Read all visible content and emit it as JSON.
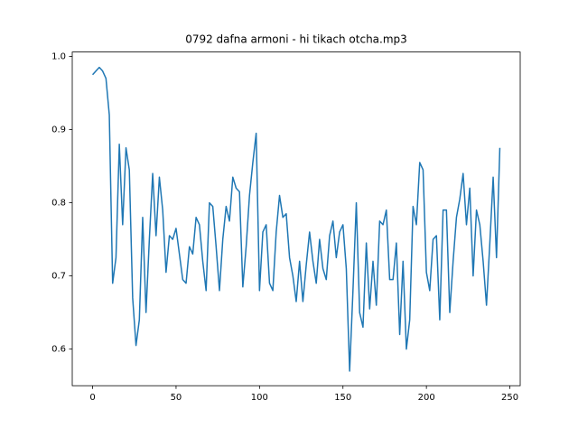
{
  "chart_data": {
    "type": "line",
    "title": "0792 dafna armoni - hi tikach otcha.mp3",
    "x": [
      0,
      2,
      4,
      6,
      8,
      10,
      12,
      14,
      16,
      18,
      20,
      22,
      24,
      26,
      28,
      30,
      32,
      34,
      36,
      38,
      40,
      42,
      44,
      46,
      48,
      50,
      52,
      54,
      56,
      58,
      60,
      62,
      64,
      66,
      68,
      70,
      72,
      74,
      76,
      78,
      80,
      82,
      84,
      86,
      88,
      90,
      92,
      94,
      96,
      98,
      100,
      102,
      104,
      106,
      108,
      110,
      112,
      114,
      116,
      118,
      120,
      122,
      124,
      126,
      128,
      130,
      132,
      134,
      136,
      138,
      140,
      142,
      144,
      146,
      148,
      150,
      152,
      154,
      156,
      158,
      160,
      162,
      164,
      166,
      168,
      170,
      172,
      174,
      176,
      178,
      180,
      182,
      184,
      186,
      188,
      190,
      192,
      194,
      196,
      198,
      200,
      202,
      204,
      206,
      208,
      210,
      212,
      214,
      216,
      218,
      220,
      222,
      224,
      226,
      228,
      230,
      232,
      234,
      236,
      238,
      240,
      242,
      244
    ],
    "series": [
      {
        "color": "#1f77b4",
        "values": [
          0.975,
          0.98,
          0.985,
          0.98,
          0.97,
          0.92,
          0.69,
          0.725,
          0.88,
          0.77,
          0.875,
          0.845,
          0.67,
          0.605,
          0.64,
          0.78,
          0.65,
          0.75,
          0.84,
          0.755,
          0.835,
          0.79,
          0.705,
          0.755,
          0.75,
          0.765,
          0.73,
          0.695,
          0.69,
          0.74,
          0.73,
          0.78,
          0.77,
          0.72,
          0.68,
          0.8,
          0.795,
          0.74,
          0.68,
          0.75,
          0.795,
          0.775,
          0.835,
          0.82,
          0.815,
          0.685,
          0.74,
          0.81,
          0.855,
          0.895,
          0.68,
          0.76,
          0.77,
          0.69,
          0.68,
          0.76,
          0.81,
          0.78,
          0.785,
          0.725,
          0.7,
          0.665,
          0.72,
          0.665,
          0.715,
          0.76,
          0.72,
          0.69,
          0.75,
          0.71,
          0.695,
          0.755,
          0.775,
          0.725,
          0.76,
          0.77,
          0.71,
          0.57,
          0.68,
          0.8,
          0.65,
          0.63,
          0.745,
          0.655,
          0.72,
          0.66,
          0.775,
          0.77,
          0.79,
          0.695,
          0.695,
          0.745,
          0.62,
          0.72,
          0.6,
          0.64,
          0.795,
          0.77,
          0.855,
          0.845,
          0.705,
          0.68,
          0.75,
          0.755,
          0.64,
          0.79,
          0.79,
          0.65,
          0.72,
          0.78,
          0.805,
          0.84,
          0.77,
          0.82,
          0.7,
          0.79,
          0.77,
          0.72,
          0.66,
          0.745,
          0.835,
          0.725,
          0.875
        ]
      }
    ],
    "xlim": [
      -12.2,
      256.2
    ],
    "ylim": [
      0.55,
      1.006
    ],
    "xticks": [
      0,
      50,
      100,
      150,
      200,
      250
    ],
    "yticks": [
      0.6,
      0.7,
      0.8,
      0.9,
      {
        "value": 1,
        "label": "1.0"
      }
    ]
  }
}
